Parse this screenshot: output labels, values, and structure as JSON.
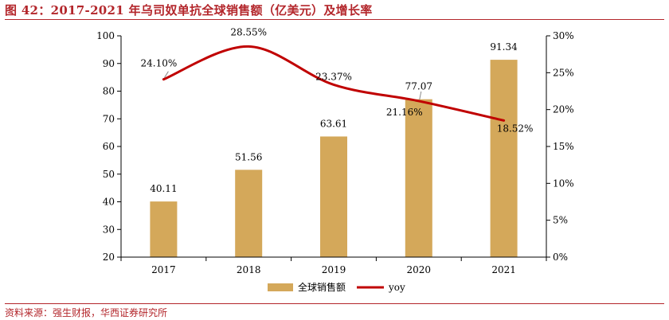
{
  "figure": {
    "title": "图 42：2017-2021 年乌司奴单抗全球销售额（亿美元）及增长率",
    "source": "资料来源：强生财报，华西证券研究所"
  },
  "colors": {
    "bar": "#D4A85A",
    "line": "#C00000",
    "title": "#B3262B",
    "axis": "#000000"
  },
  "chart_data": {
    "type": "bar",
    "categories": [
      "2017",
      "2018",
      "2019",
      "2020",
      "2021"
    ],
    "series": [
      {
        "name": "全球销售额",
        "type": "bar",
        "axis": "left",
        "values": [
          40.11,
          51.56,
          63.61,
          77.07,
          91.34
        ],
        "labels": [
          "40.11",
          "51.56",
          "63.61",
          "77.07",
          "91.34"
        ]
      },
      {
        "name": "yoy",
        "type": "line",
        "axis": "right",
        "values": [
          24.1,
          28.55,
          23.37,
          21.16,
          18.52
        ],
        "labels": [
          "24.10%",
          "28.55%",
          "23.37%",
          "21.16%",
          "18.52%"
        ]
      }
    ],
    "y_left": {
      "min": 20,
      "max": 100,
      "step": 10,
      "ticks": [
        "20",
        "30",
        "40",
        "50",
        "60",
        "70",
        "80",
        "90",
        "100"
      ]
    },
    "y_right": {
      "min": 0,
      "max": 30,
      "step": 5,
      "ticks": [
        "0%",
        "5%",
        "10%",
        "15%",
        "20%",
        "25%",
        "30%"
      ]
    },
    "grid": false,
    "legend_position": "bottom"
  }
}
